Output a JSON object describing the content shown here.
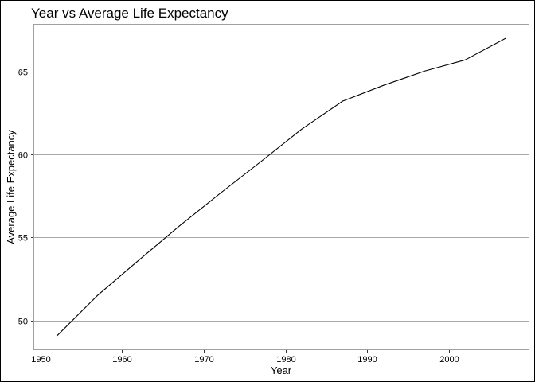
{
  "chart_data": {
    "type": "line",
    "title": "Year vs Average Life Expectancy",
    "xlabel": "Year",
    "ylabel": "Average Life Expectancy",
    "x": [
      1952,
      1957,
      1962,
      1967,
      1972,
      1977,
      1982,
      1987,
      1992,
      1997,
      2002,
      2007
    ],
    "series": [
      {
        "values": [
          49.06,
          51.51,
          53.61,
          55.68,
          57.65,
          59.57,
          61.53,
          63.21,
          64.16,
          65.01,
          65.69,
          67.01
        ]
      }
    ],
    "xlim": [
      1949.25,
      2009.75
    ],
    "ylim": [
      48.26,
      67.81
    ],
    "x_ticks": [
      1950,
      1960,
      1970,
      1980,
      1990,
      2000
    ],
    "x_tick_labels": [
      "1950",
      "1960",
      "1970",
      "1980",
      "1990",
      "2000"
    ],
    "y_ticks": [
      50,
      55,
      60,
      65
    ],
    "y_tick_labels": [
      "50",
      "55",
      "60",
      "65"
    ],
    "grid": "horizontal major",
    "legend": "none",
    "colors": {
      "line": "#000000",
      "grid": "#a8a8a8",
      "panel_border": "#a0a0a0",
      "background": "#ffffff"
    }
  }
}
